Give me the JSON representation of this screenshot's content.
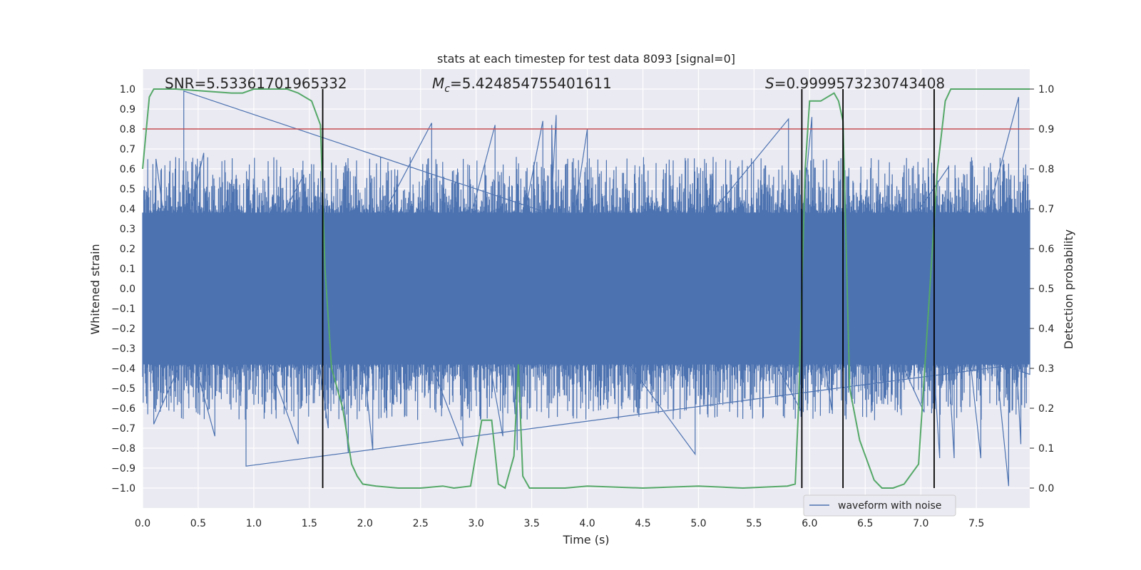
{
  "chart_data": {
    "type": "line",
    "title": "stats at each timestep for test data 8093 [signal=0]",
    "xlabel": "Time (s)",
    "ylabel_left": "Whitened strain",
    "ylabel_right": "Detection probability",
    "xlim": [
      0.0,
      7.98
    ],
    "ylim_left": [
      -1.1,
      1.1
    ],
    "ylim_right": [
      -0.05,
      1.05
    ],
    "grid": true,
    "x_ticks": [
      "0.0",
      "0.5",
      "1.0",
      "1.5",
      "2.0",
      "2.5",
      "3.0",
      "3.5",
      "4.0",
      "4.5",
      "5.0",
      "5.5",
      "6.0",
      "6.5",
      "7.0",
      "7.5"
    ],
    "y_ticks_left": [
      "1.0",
      "0.9",
      "0.8",
      "0.7",
      "0.6",
      "0.5",
      "0.4",
      "0.3",
      "0.2",
      "0.1",
      "0.0",
      "−0.1",
      "−0.2",
      "−0.3",
      "−0.4",
      "−0.5",
      "−0.6",
      "−0.7",
      "−0.8",
      "−0.9",
      "−1.0"
    ],
    "y_ticks_right": [
      "1.0",
      "0.9",
      "0.8",
      "0.7",
      "0.6",
      "0.5",
      "0.4",
      "0.3",
      "0.2",
      "0.1",
      "0.0"
    ],
    "annotations": {
      "snr": "SNR=5.53361701965332",
      "mc_symbol": "M",
      "mc_sub": "c",
      "mc_value": "=5.424854755401611",
      "s_symbol": "S",
      "s_value": "=0.9999573230743408"
    },
    "legend": {
      "label": "waveform with noise",
      "placement": "lower-right"
    },
    "threshold": {
      "axis": "right",
      "value": 0.9,
      "color": "#c44e52"
    },
    "vertical_markers": [
      1.62,
      5.93,
      6.3,
      7.12
    ],
    "waveform": {
      "name": "waveform with noise",
      "color": "#4c72b0",
      "duration_s": 7.98,
      "band_min": -0.38,
      "band_max": 0.38,
      "peaks": [
        {
          "t": 0.37,
          "v": 0.99
        },
        {
          "t": 0.12,
          "v": 0.65
        },
        {
          "t": 0.55,
          "v": 0.68
        },
        {
          "t": 1.45,
          "v": 0.57
        },
        {
          "t": 2.6,
          "v": 0.83
        },
        {
          "t": 3.17,
          "v": 0.82
        },
        {
          "t": 3.6,
          "v": 0.84
        },
        {
          "t": 3.72,
          "v": 0.87
        },
        {
          "t": 3.68,
          "v": 0.82
        },
        {
          "t": 4.0,
          "v": 0.8
        },
        {
          "t": 5.81,
          "v": 0.85
        },
        {
          "t": 6.02,
          "v": 0.86
        },
        {
          "t": 7.25,
          "v": 0.61
        },
        {
          "t": 7.88,
          "v": 0.96
        },
        {
          "t": 0.93,
          "v": -0.89
        },
        {
          "t": 0.1,
          "v": -0.68
        },
        {
          "t": 0.65,
          "v": -0.74
        },
        {
          "t": 1.4,
          "v": -0.78
        },
        {
          "t": 1.67,
          "v": -0.7
        },
        {
          "t": 1.85,
          "v": -0.82
        },
        {
          "t": 2.07,
          "v": -0.81
        },
        {
          "t": 2.88,
          "v": -0.79
        },
        {
          "t": 3.24,
          "v": -0.74
        },
        {
          "t": 3.35,
          "v": -0.63
        },
        {
          "t": 3.37,
          "v": -0.81
        },
        {
          "t": 4.97,
          "v": -0.83
        },
        {
          "t": 5.93,
          "v": -0.62
        },
        {
          "t": 6.2,
          "v": -0.61
        },
        {
          "t": 7.03,
          "v": -0.62
        },
        {
          "t": 7.17,
          "v": -0.85
        },
        {
          "t": 7.3,
          "v": -0.85
        },
        {
          "t": 7.54,
          "v": -0.85
        },
        {
          "t": 7.79,
          "v": -0.99
        },
        {
          "t": 7.9,
          "v": -0.78
        }
      ]
    },
    "probability": {
      "name": "detection probability",
      "color": "#55a868",
      "x": [
        0.0,
        0.06,
        0.1,
        0.3,
        0.8,
        0.9,
        1.0,
        1.3,
        1.4,
        1.52,
        1.6,
        1.64,
        1.7,
        1.8,
        1.88,
        1.93,
        1.98,
        2.1,
        2.3,
        2.5,
        2.7,
        2.8,
        2.95,
        3.05,
        3.14,
        3.2,
        3.26,
        3.34,
        3.38,
        3.42,
        3.48,
        3.6,
        3.8,
        4.0,
        4.5,
        5.0,
        5.4,
        5.8,
        5.87,
        5.9,
        5.93,
        5.96,
        6.0,
        6.05,
        6.1,
        6.22,
        6.26,
        6.3,
        6.36,
        6.45,
        6.58,
        6.65,
        6.75,
        6.85,
        6.98,
        7.1,
        7.15,
        7.22,
        7.27,
        7.98
      ],
      "y": [
        0.8,
        0.98,
        1.0,
        1.0,
        0.99,
        0.99,
        1.0,
        1.0,
        0.99,
        0.97,
        0.91,
        0.55,
        0.3,
        0.2,
        0.06,
        0.03,
        0.01,
        0.005,
        0.0,
        0.0,
        0.005,
        0.0,
        0.005,
        0.17,
        0.17,
        0.01,
        0.0,
        0.08,
        0.31,
        0.03,
        0.0,
        0.0,
        0.0,
        0.005,
        0.0,
        0.005,
        0.0,
        0.005,
        0.01,
        0.2,
        0.5,
        0.8,
        0.97,
        0.97,
        0.97,
        0.99,
        0.97,
        0.92,
        0.25,
        0.12,
        0.02,
        0.0,
        0.0,
        0.01,
        0.06,
        0.58,
        0.8,
        0.97,
        1.0,
        1.0
      ]
    }
  }
}
